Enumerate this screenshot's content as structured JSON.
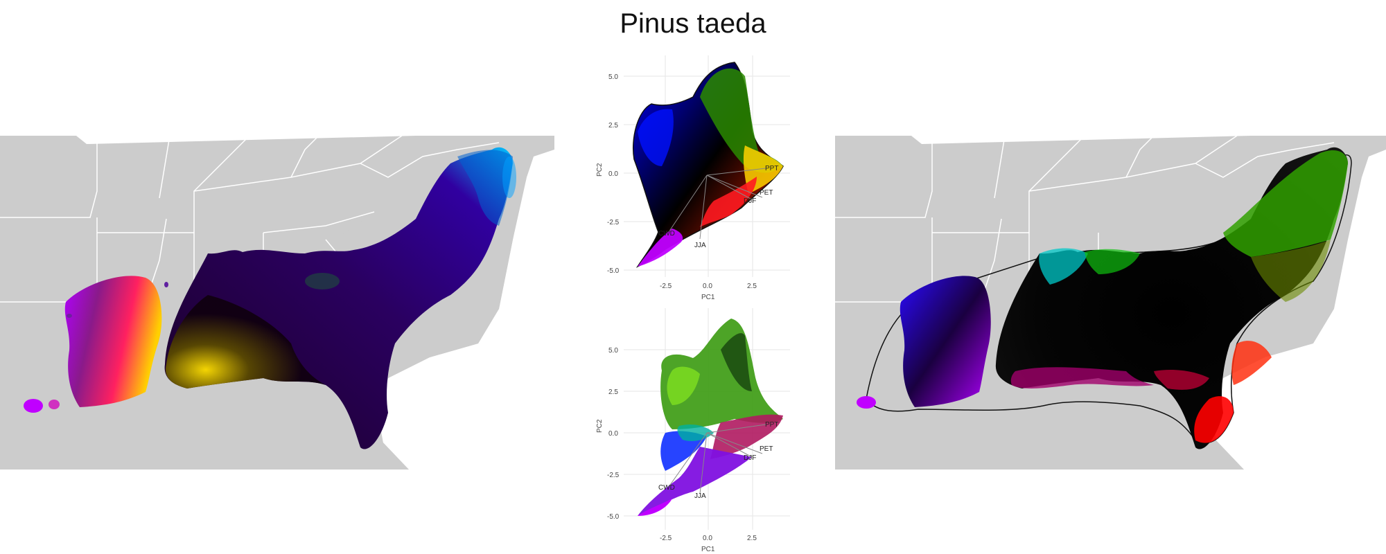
{
  "title": "Pinus taeda",
  "colors": {
    "land": "#cccccc",
    "border": "#ffffff",
    "grid": "#e6e6e6",
    "hull": "#111111",
    "loading": "#888888"
  },
  "pca": {
    "x_label": "PC1",
    "y_label": "PC2",
    "x_ticks": [
      "-2.5",
      "0.0",
      "2.5"
    ],
    "y_ticks": [
      "5.0",
      "2.5",
      "0.0",
      "-2.5",
      "-5.0"
    ],
    "variables": [
      "PPT",
      "PET",
      "DJF",
      "CWD",
      "JJA"
    ]
  },
  "maps": {
    "left": "observed-climate-map",
    "right": "interpolated-climate-map"
  }
}
